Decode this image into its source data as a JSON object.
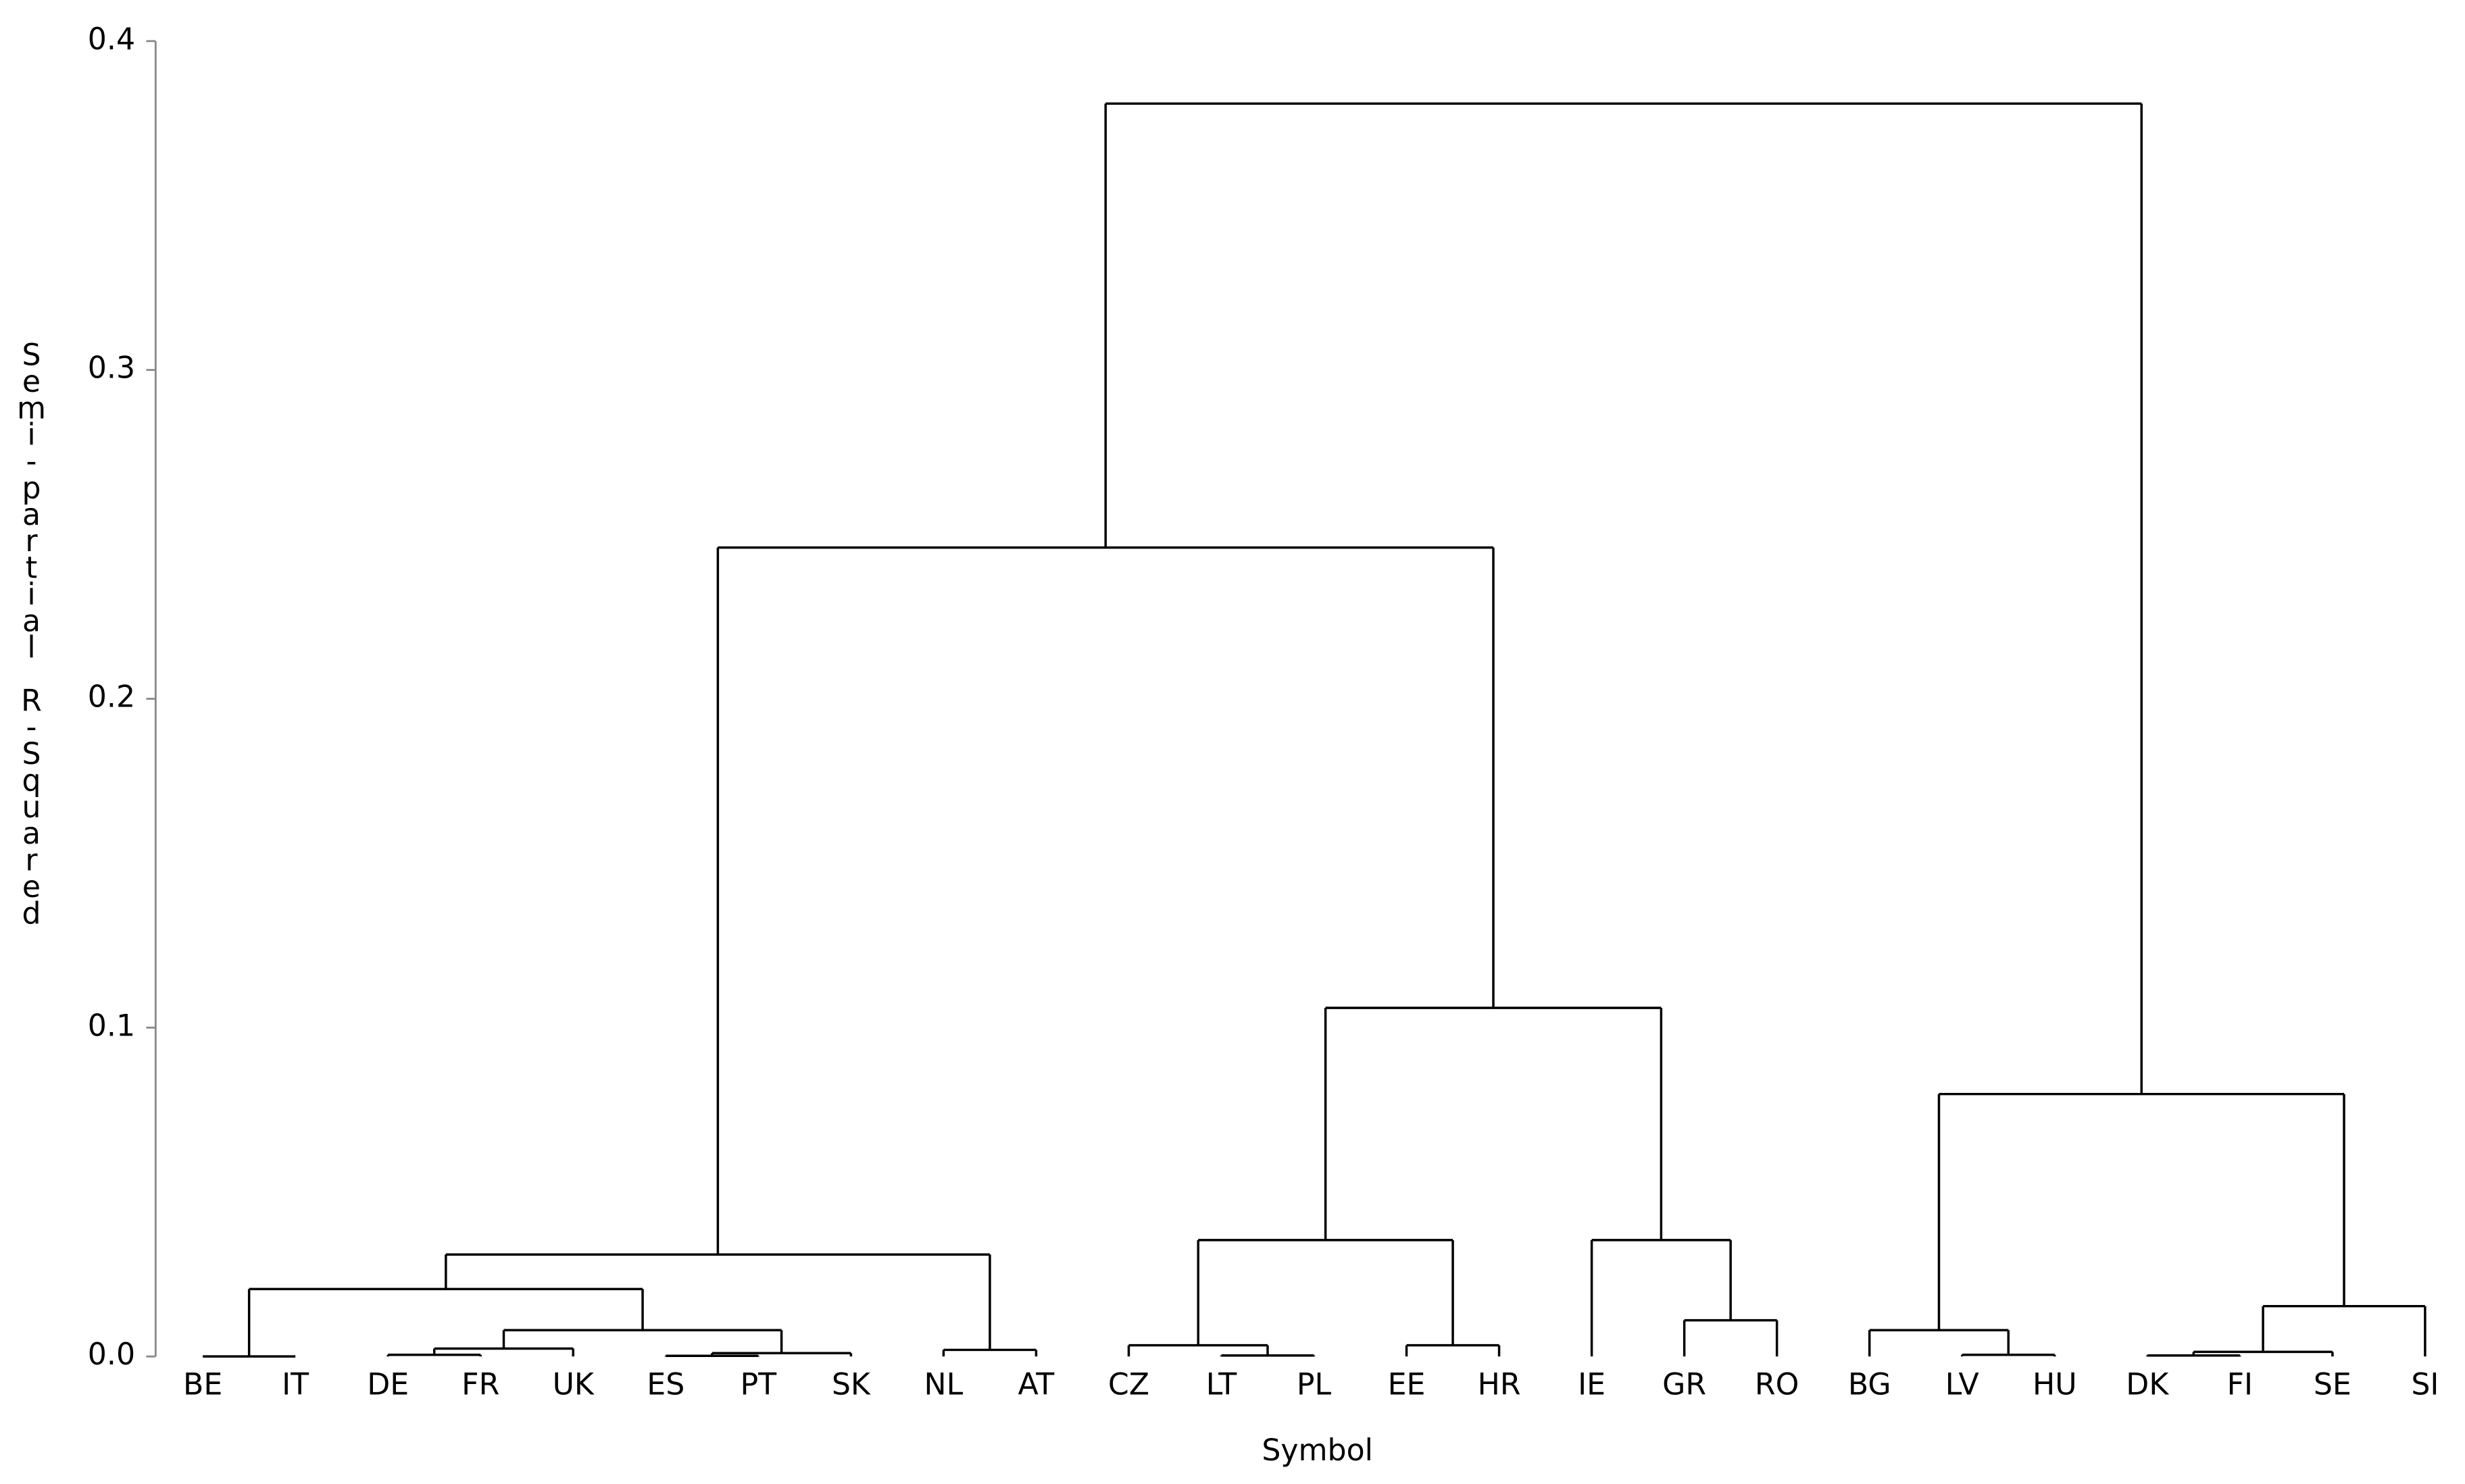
{
  "chart_data": {
    "type": "dendrogram",
    "x_label": "Symbol",
    "y_label": "Semi-partial R-Squared",
    "ylim": [
      0,
      0.4
    ],
    "yticks": [
      {
        "value": 0,
        "label": "0.0"
      },
      0.1,
      0.2,
      0.3,
      0.4
    ],
    "color": "#000000",
    "tree": {
      "height": 0.381,
      "children": [
        {
          "height": 0.246,
          "children": [
            {
              "height": 0.031,
              "children": [
                {
                  "height": 0.0205,
                  "children": [
                    {
                      "height": 0,
                      "children": [
                        "BE",
                        "IT"
                      ]
                    },
                    {
                      "height": 0.008,
                      "children": [
                        {
                          "height": 0.0024,
                          "children": [
                            {
                              "height": 0.0005,
                              "children": [
                                "DE",
                                "FR"
                              ]
                            },
                            "UK"
                          ]
                        },
                        {
                          "height": 0.001,
                          "children": [
                            {
                              "height": 0.0002,
                              "children": [
                                "ES",
                                "PT"
                              ]
                            },
                            "SK"
                          ]
                        }
                      ]
                    }
                  ]
                },
                {
                  "height": 0.002,
                  "children": [
                    "NL",
                    "AT"
                  ]
                }
              ]
            },
            {
              "height": 0.106,
              "children": [
                {
                  "height": 0.0354,
                  "children": [
                    {
                      "height": 0.0034,
                      "children": [
                        "CZ",
                        {
                          "height": 0.0003,
                          "children": [
                            "LT",
                            "PL"
                          ]
                        }
                      ]
                    },
                    {
                      "height": 0.0034,
                      "children": [
                        "EE",
                        "HR"
                      ]
                    }
                  ]
                },
                {
                  "height": 0.0354,
                  "children": [
                    "IE",
                    {
                      "height": 0.011,
                      "children": [
                        "GR",
                        "RO"
                      ]
                    }
                  ]
                }
              ]
            }
          ]
        },
        {
          "height": 0.0798,
          "children": [
            {
              "height": 0.008,
              "children": [
                "BG",
                {
                  "height": 0.0005,
                  "children": [
                    "LV",
                    "HU"
                  ]
                }
              ]
            },
            {
              "height": 0.0153,
              "children": [
                {
                  "height": 0.0014,
                  "children": [
                    {
                      "height": 0.0003,
                      "children": [
                        "DK",
                        "FI"
                      ]
                    },
                    "SE"
                  ]
                },
                "SI"
              ]
            }
          ]
        }
      ]
    }
  }
}
